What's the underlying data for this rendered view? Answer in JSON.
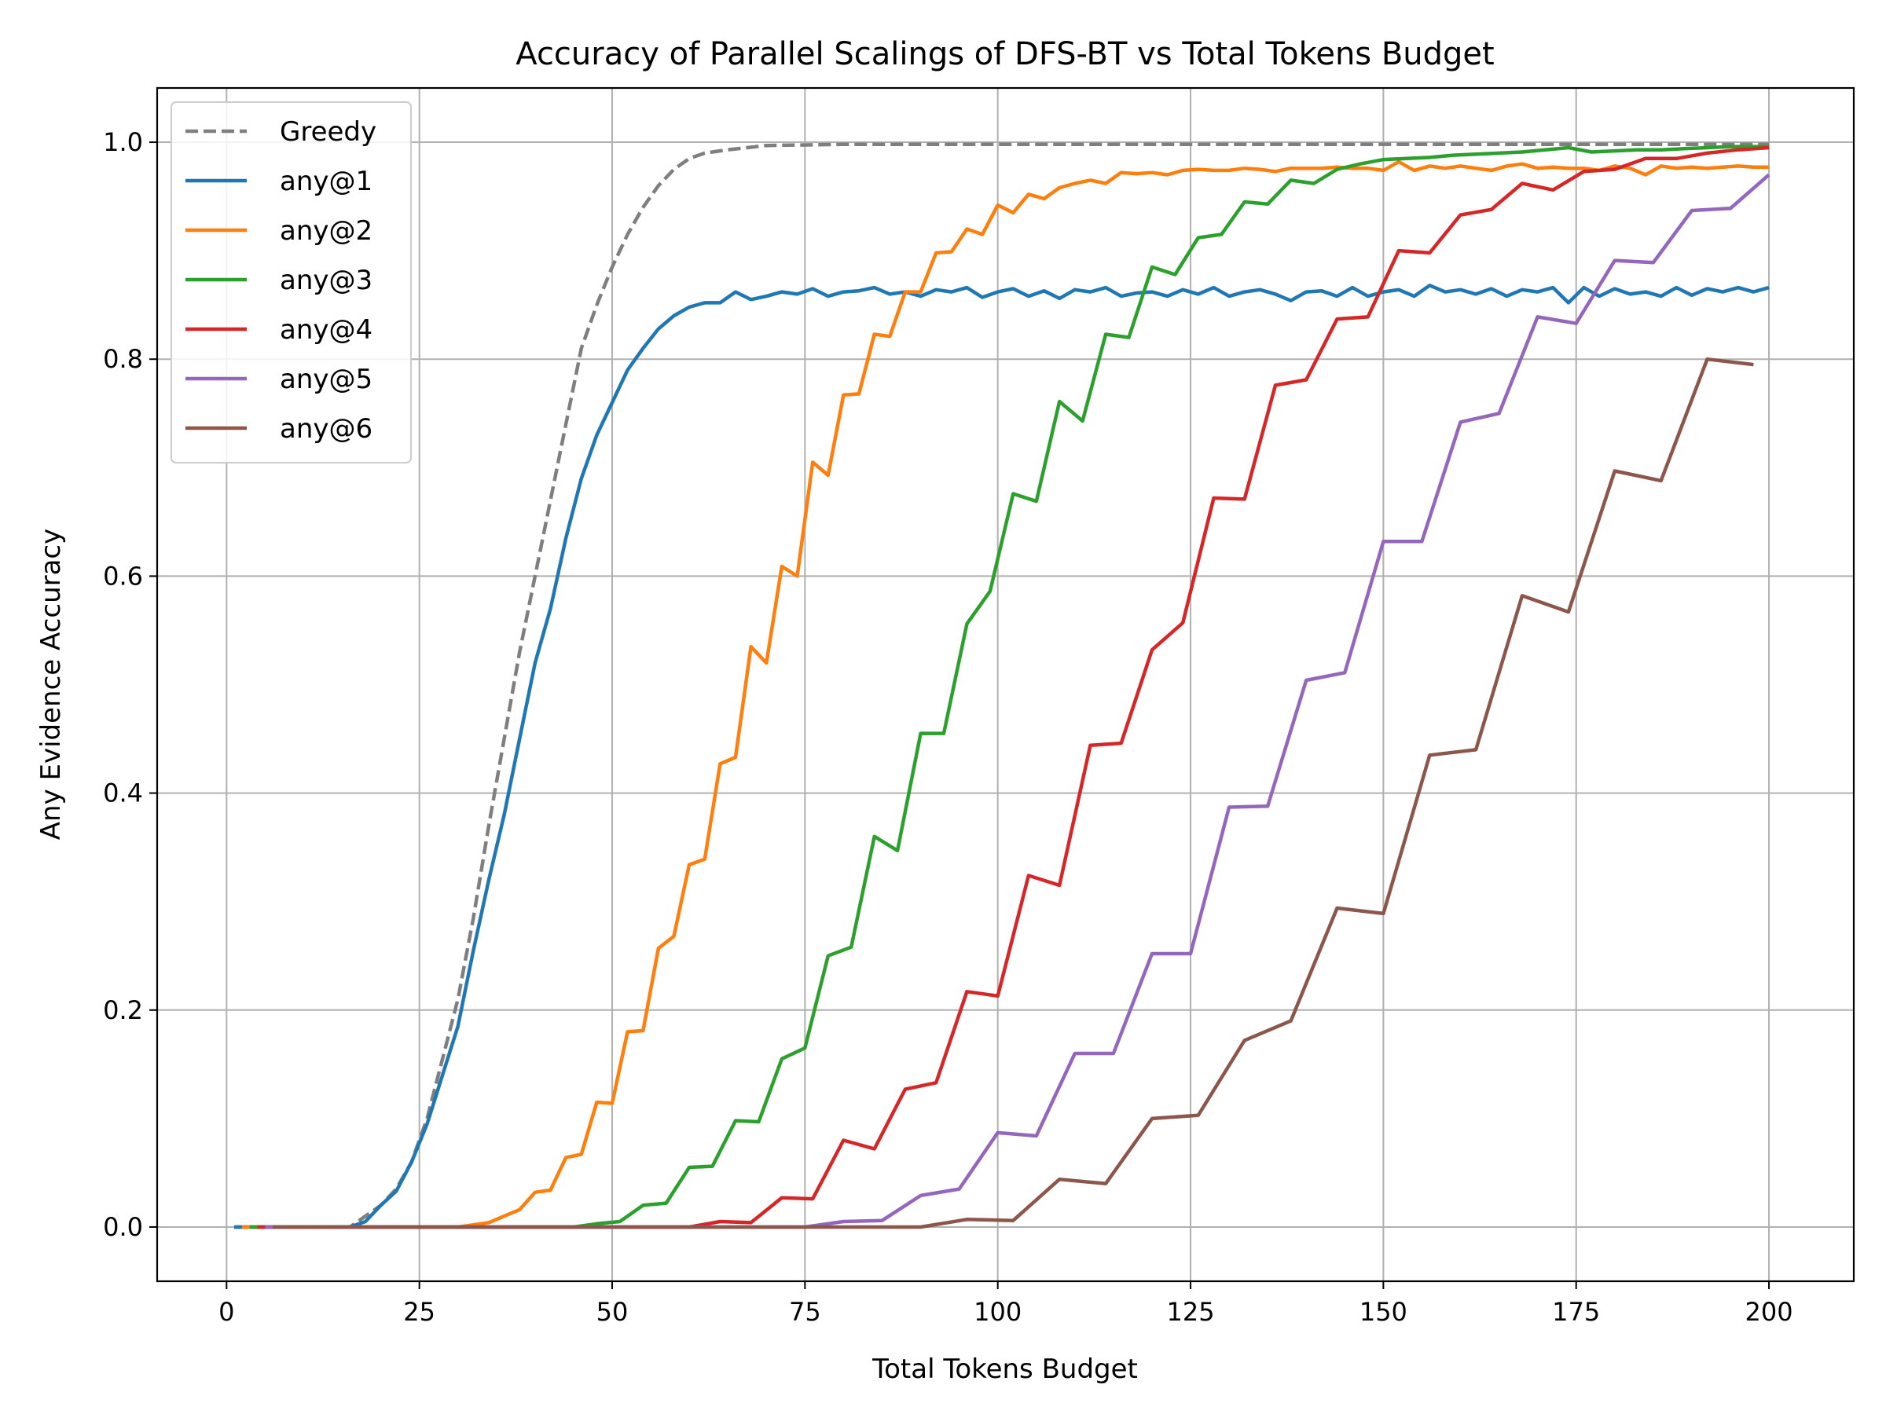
{
  "chart_data": {
    "type": "line",
    "title": "Accuracy of Parallel Scalings of DFS-BT vs Total Tokens Budget",
    "xlabel": "Total Tokens Budget",
    "ylabel": "Any Evidence Accuracy",
    "xlim": [
      -9,
      211
    ],
    "ylim": [
      -0.05,
      1.05
    ],
    "xticks": [
      0,
      25,
      50,
      75,
      100,
      125,
      150,
      175,
      200
    ],
    "xtick_labels": [
      "0",
      "25",
      "50",
      "75",
      "100",
      "125",
      "150",
      "175",
      "200"
    ],
    "yticks": [
      0.0,
      0.2,
      0.4,
      0.6,
      0.8,
      1.0
    ],
    "ytick_labels": [
      "0.0",
      "0.2",
      "0.4",
      "0.6",
      "0.8",
      "1.0"
    ],
    "grid": true,
    "legend_position": "top-left",
    "series": [
      {
        "name": "Greedy",
        "color": "#7f7f7f",
        "dashed": true,
        "x": [
          1,
          10,
          16,
          18,
          20,
          22,
          24,
          26,
          28,
          30,
          32,
          34,
          36,
          38,
          40,
          42,
          44,
          46,
          48,
          50,
          52,
          54,
          56,
          58,
          60,
          62,
          65,
          70,
          80,
          100,
          150,
          200
        ],
        "y": [
          0.0,
          0.0,
          0.0,
          0.01,
          0.02,
          0.035,
          0.06,
          0.1,
          0.155,
          0.21,
          0.285,
          0.37,
          0.45,
          0.53,
          0.6,
          0.67,
          0.74,
          0.81,
          0.85,
          0.885,
          0.915,
          0.94,
          0.96,
          0.975,
          0.985,
          0.99,
          0.993,
          0.997,
          0.998,
          0.998,
          0.998,
          0.998
        ]
      },
      {
        "name": "any@1",
        "color": "#1f77b4",
        "dashed": false,
        "x": [
          1,
          10,
          16,
          18,
          20,
          22,
          24,
          26,
          28,
          30,
          32,
          34,
          36,
          38,
          40,
          42,
          44,
          46,
          48,
          50,
          52,
          54,
          56,
          58,
          60,
          62,
          64,
          66,
          68,
          70,
          72,
          74,
          76,
          78,
          80,
          82,
          84,
          86,
          88,
          90,
          92,
          94,
          96,
          98,
          100,
          102,
          104,
          106,
          108,
          110,
          112,
          114,
          116,
          118,
          120,
          122,
          124,
          126,
          128,
          130,
          132,
          134,
          136,
          138,
          140,
          142,
          144,
          146,
          148,
          150,
          152,
          154,
          156,
          158,
          160,
          162,
          164,
          166,
          168,
          170,
          172,
          174,
          176,
          178,
          180,
          182,
          184,
          186,
          188,
          190,
          192,
          194,
          196,
          198,
          200
        ],
        "y": [
          0.0,
          0.0,
          0.0,
          0.005,
          0.02,
          0.033,
          0.06,
          0.095,
          0.14,
          0.185,
          0.255,
          0.32,
          0.38,
          0.45,
          0.52,
          0.57,
          0.635,
          0.69,
          0.73,
          0.76,
          0.79,
          0.81,
          0.828,
          0.84,
          0.848,
          0.852,
          0.852,
          0.862,
          0.855,
          0.858,
          0.862,
          0.86,
          0.865,
          0.858,
          0.862,
          0.863,
          0.866,
          0.86,
          0.862,
          0.858,
          0.864,
          0.862,
          0.866,
          0.857,
          0.862,
          0.865,
          0.858,
          0.863,
          0.856,
          0.864,
          0.862,
          0.866,
          0.858,
          0.861,
          0.862,
          0.858,
          0.864,
          0.86,
          0.866,
          0.858,
          0.862,
          0.864,
          0.86,
          0.854,
          0.862,
          0.863,
          0.858,
          0.866,
          0.858,
          0.862,
          0.864,
          0.858,
          0.868,
          0.862,
          0.864,
          0.86,
          0.865,
          0.858,
          0.864,
          0.862,
          0.866,
          0.852,
          0.866,
          0.858,
          0.865,
          0.86,
          0.862,
          0.858,
          0.866,
          0.859,
          0.865,
          0.862,
          0.866,
          0.862,
          0.866
        ]
      },
      {
        "name": "any@2",
        "color": "#ff7f0e",
        "dashed": false,
        "x": [
          2,
          30,
          32,
          34,
          36,
          38,
          40,
          42,
          44,
          46,
          48,
          50,
          52,
          54,
          56,
          58,
          60,
          62,
          64,
          66,
          68,
          70,
          72,
          74,
          76,
          78,
          80,
          82,
          84,
          86,
          88,
          90,
          92,
          94,
          96,
          98,
          100,
          102,
          104,
          106,
          108,
          110,
          112,
          114,
          116,
          118,
          120,
          122,
          124,
          126,
          128,
          130,
          132,
          134,
          136,
          138,
          140,
          142,
          144,
          146,
          148,
          150,
          152,
          154,
          156,
          158,
          160,
          162,
          164,
          166,
          168,
          170,
          172,
          174,
          176,
          178,
          180,
          182,
          184,
          186,
          188,
          190,
          192,
          194,
          196,
          198,
          200
        ],
        "y": [
          0.0,
          0.0,
          0.002,
          0.004,
          0.01,
          0.016,
          0.032,
          0.034,
          0.064,
          0.067,
          0.115,
          0.114,
          0.18,
          0.181,
          0.257,
          0.268,
          0.334,
          0.339,
          0.427,
          0.433,
          0.535,
          0.52,
          0.609,
          0.6,
          0.705,
          0.693,
          0.767,
          0.768,
          0.823,
          0.821,
          0.862,
          0.862,
          0.898,
          0.899,
          0.92,
          0.915,
          0.942,
          0.935,
          0.952,
          0.948,
          0.958,
          0.962,
          0.965,
          0.962,
          0.972,
          0.971,
          0.972,
          0.97,
          0.974,
          0.975,
          0.974,
          0.974,
          0.976,
          0.975,
          0.973,
          0.976,
          0.976,
          0.976,
          0.977,
          0.976,
          0.976,
          0.974,
          0.982,
          0.974,
          0.978,
          0.976,
          0.978,
          0.976,
          0.974,
          0.978,
          0.98,
          0.976,
          0.977,
          0.976,
          0.976,
          0.974,
          0.978,
          0.976,
          0.97,
          0.978,
          0.976,
          0.977,
          0.976,
          0.977,
          0.978,
          0.977,
          0.977
        ]
      },
      {
        "name": "any@3",
        "color": "#2ca02c",
        "dashed": false,
        "x": [
          3,
          45,
          48,
          51,
          54,
          57,
          60,
          63,
          66,
          69,
          72,
          75,
          78,
          81,
          84,
          87,
          90,
          93,
          96,
          99,
          102,
          105,
          108,
          111,
          114,
          117,
          120,
          123,
          126,
          129,
          132,
          135,
          138,
          141,
          144,
          147,
          150,
          153,
          156,
          159,
          162,
          165,
          168,
          171,
          174,
          177,
          180,
          183,
          186,
          189,
          192,
          195,
          198,
          200
        ],
        "y": [
          0.0,
          0.0,
          0.003,
          0.005,
          0.02,
          0.022,
          0.055,
          0.056,
          0.098,
          0.097,
          0.155,
          0.165,
          0.25,
          0.258,
          0.36,
          0.347,
          0.455,
          0.455,
          0.556,
          0.586,
          0.676,
          0.669,
          0.761,
          0.743,
          0.823,
          0.82,
          0.885,
          0.878,
          0.912,
          0.915,
          0.945,
          0.943,
          0.965,
          0.962,
          0.975,
          0.98,
          0.984,
          0.985,
          0.986,
          0.988,
          0.989,
          0.99,
          0.991,
          0.993,
          0.995,
          0.991,
          0.992,
          0.993,
          0.993,
          0.994,
          0.995,
          0.996,
          0.996,
          0.996
        ]
      },
      {
        "name": "any@4",
        "color": "#d62728",
        "dashed": false,
        "x": [
          4,
          60,
          64,
          68,
          72,
          76,
          80,
          84,
          88,
          92,
          96,
          100,
          104,
          108,
          112,
          116,
          120,
          124,
          128,
          132,
          136,
          140,
          144,
          148,
          152,
          156,
          160,
          164,
          168,
          172,
          176,
          180,
          184,
          188,
          192,
          196,
          200
        ],
        "y": [
          0.0,
          0.0,
          0.005,
          0.004,
          0.027,
          0.026,
          0.08,
          0.072,
          0.127,
          0.133,
          0.217,
          0.213,
          0.324,
          0.315,
          0.444,
          0.446,
          0.532,
          0.557,
          0.672,
          0.671,
          0.776,
          0.781,
          0.837,
          0.839,
          0.9,
          0.898,
          0.933,
          0.938,
          0.962,
          0.956,
          0.973,
          0.975,
          0.985,
          0.985,
          0.99,
          0.993,
          0.995
        ]
      },
      {
        "name": "any@5",
        "color": "#9467bd",
        "dashed": false,
        "x": [
          5,
          75,
          80,
          85,
          90,
          95,
          100,
          105,
          110,
          115,
          120,
          125,
          130,
          135,
          140,
          145,
          150,
          155,
          160,
          165,
          170,
          175,
          180,
          185,
          190,
          195,
          200
        ],
        "y": [
          0.0,
          0.0,
          0.005,
          0.006,
          0.029,
          0.035,
          0.087,
          0.084,
          0.16,
          0.16,
          0.252,
          0.252,
          0.387,
          0.388,
          0.504,
          0.511,
          0.632,
          0.632,
          0.742,
          0.75,
          0.839,
          0.833,
          0.891,
          0.889,
          0.937,
          0.939,
          0.97
        ]
      },
      {
        "name": "any@6",
        "color": "#8c564b",
        "dashed": false,
        "x": [
          6,
          90,
          96,
          102,
          108,
          114,
          120,
          126,
          132,
          138,
          144,
          150,
          156,
          162,
          168,
          174,
          180,
          186,
          192,
          198
        ],
        "y": [
          0.0,
          0.0,
          0.007,
          0.006,
          0.044,
          0.04,
          0.1,
          0.103,
          0.172,
          0.19,
          0.294,
          0.289,
          0.435,
          0.44,
          0.582,
          0.567,
          0.697,
          0.688,
          0.8,
          0.795
        ]
      }
    ]
  }
}
